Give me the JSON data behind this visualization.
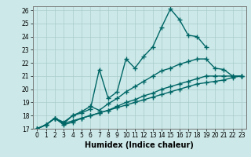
{
  "xlabel": "Humidex (Indice chaleur)",
  "bg_color": "#cce8e8",
  "grid_color": "#aacccc",
  "line_color": "#006666",
  "xlim": [
    -0.5,
    23.5
  ],
  "ylim": [
    17,
    26.3
  ],
  "xticks": [
    0,
    1,
    2,
    3,
    4,
    5,
    6,
    7,
    8,
    9,
    10,
    11,
    12,
    13,
    14,
    15,
    16,
    17,
    18,
    19,
    20,
    21,
    22,
    23
  ],
  "yticks": [
    17,
    18,
    19,
    20,
    21,
    22,
    23,
    24,
    25,
    26
  ],
  "lines": [
    {
      "x": [
        0,
        1,
        2,
        3,
        4,
        5,
        6,
        7,
        8,
        9,
        10,
        11,
        12,
        13,
        14,
        15,
        16,
        17,
        18,
        19
      ],
      "y": [
        17.0,
        17.3,
        17.8,
        17.4,
        18.0,
        18.2,
        18.5,
        21.5,
        19.3,
        19.8,
        22.3,
        21.6,
        22.5,
        23.2,
        24.7,
        26.1,
        25.3,
        24.1,
        24.0,
        23.2
      ]
    },
    {
      "x": [
        0,
        1,
        2,
        3,
        4,
        5,
        6,
        7,
        8,
        9,
        10,
        11,
        12,
        13,
        14,
        15,
        16,
        17,
        18,
        19,
        20,
        21,
        22,
        23
      ],
      "y": [
        17.0,
        17.3,
        17.8,
        17.5,
        18.0,
        18.3,
        18.7,
        18.4,
        18.9,
        19.3,
        19.8,
        20.2,
        20.6,
        21.0,
        21.4,
        21.6,
        21.9,
        22.1,
        22.3,
        22.3,
        21.6,
        21.5,
        21.0,
        21.0
      ]
    },
    {
      "x": [
        0,
        1,
        2,
        3,
        4,
        5,
        6,
        7,
        8,
        9,
        10,
        11,
        12,
        13,
        14,
        15,
        16,
        17,
        18,
        19,
        20,
        21,
        22,
        23
      ],
      "y": [
        17.0,
        17.3,
        17.8,
        17.3,
        17.5,
        17.8,
        18.0,
        18.2,
        18.4,
        18.7,
        19.0,
        19.2,
        19.5,
        19.7,
        20.0,
        20.2,
        20.4,
        20.6,
        20.8,
        21.0,
        21.0,
        21.0,
        21.0,
        21.0
      ]
    },
    {
      "x": [
        0,
        1,
        2,
        3,
        4,
        5,
        6,
        7,
        8,
        9,
        10,
        11,
        12,
        13,
        14,
        15,
        16,
        17,
        18,
        19,
        20,
        21,
        22,
        23
      ],
      "y": [
        17.0,
        17.3,
        17.8,
        17.4,
        17.6,
        17.8,
        18.0,
        18.2,
        18.4,
        18.6,
        18.8,
        19.0,
        19.2,
        19.4,
        19.6,
        19.8,
        20.0,
        20.2,
        20.4,
        20.5,
        20.6,
        20.7,
        20.9,
        21.0
      ]
    }
  ],
  "marker": "+",
  "markersize": 4,
  "linewidth": 1.0,
  "xlabel_fontsize": 7,
  "tick_fontsize": 5.5
}
